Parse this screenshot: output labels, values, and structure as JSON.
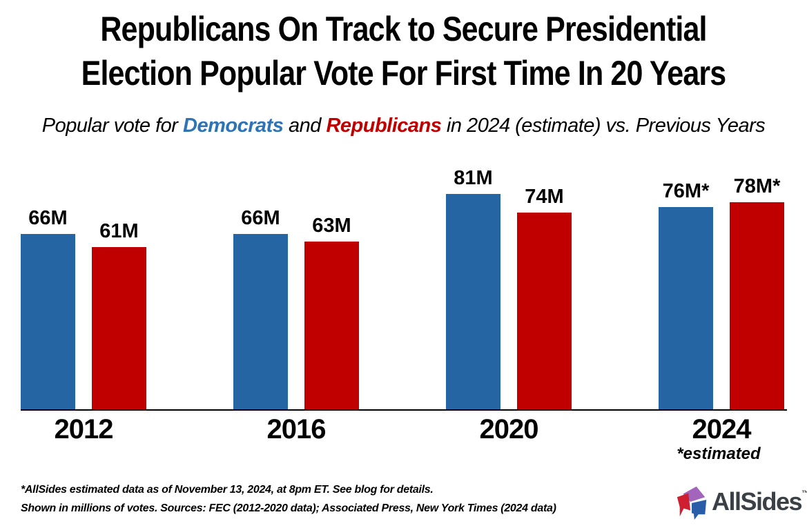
{
  "page": {
    "background": "#FFFFFF"
  },
  "title": {
    "line1": "Republicans On Track to Secure Presidential",
    "line2": "Election Popular Vote For First Time In 20 Years"
  },
  "subtitle": {
    "prefix": "Popular vote for ",
    "democrats_label": "Democrats",
    "connector": " and ",
    "republicans_label": "Republicans",
    "suffix": " in 2024 (estimate) vs. Previous Years",
    "democrats_color": "#2E74B5",
    "republicans_color": "#C00000"
  },
  "chart_data": {
    "type": "bar",
    "categories": [
      "2012",
      "2016",
      "2020",
      "2024"
    ],
    "series": [
      {
        "name": "Democrats",
        "color": "#2565A4",
        "values": [
          66,
          66,
          81,
          76
        ],
        "value_labels": [
          "66M",
          "66M",
          "81M",
          "76M*"
        ]
      },
      {
        "name": "Republicans",
        "color": "#C00000",
        "values": [
          61,
          63,
          74,
          78
        ],
        "value_labels": [
          "61M",
          "63M",
          "74M",
          "78M*"
        ]
      }
    ],
    "units": "millions of votes",
    "ylim": [
      0,
      85
    ],
    "gridlines": false,
    "y_axis_shown": false,
    "legend": "none",
    "category_notes": [
      {
        "category": "2024",
        "text": "*estimated"
      }
    ]
  },
  "footnote": {
    "line1": "*AllSides estimated data as of November 13, 2024, at 8pm ET. See blog for details.",
    "line2": "Shown in millions of votes. Sources: FEC (2012-2020 data); Associated Press, New York Times (2024 data)"
  },
  "logo": {
    "icon_name": "allsides-mark-icon",
    "text": "AllSides",
    "trademark": "TM",
    "text_color": "#3B4046",
    "icon_colors": {
      "left": "#CE2030",
      "top": "#A365BB",
      "right": "#2A5DA8"
    }
  }
}
